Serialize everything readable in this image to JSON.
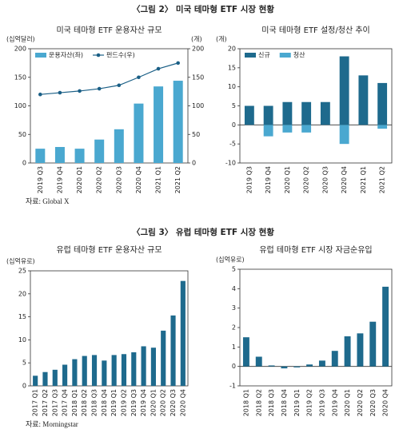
{
  "figures": [
    {
      "title": "〈그림 2〉 미국 테마형 ETF 시장 현황",
      "source": "자료: Global X"
    },
    {
      "title": "〈그림 3〉 유럽 테마형 ETF 시장 현황",
      "source": "자료: Morningstar"
    }
  ],
  "chart_data": [
    {
      "type": "combo",
      "title": "미국 테마형 ETF 운용자산 규모",
      "ylabel": "(십억달러)",
      "y2label": "(개)",
      "categories": [
        "2019 Q3",
        "2019 Q4",
        "2020 Q1",
        "2020 Q2",
        "2020 Q3",
        "2020 Q4",
        "2021 Q1",
        "2021 Q2"
      ],
      "series": [
        {
          "name": "운용자산(좌)",
          "color": "#4aa8d0",
          "kind": "bar",
          "values": [
            25,
            28,
            25,
            41,
            59,
            104,
            134,
            144
          ]
        },
        {
          "name": "펀드수(우)",
          "color": "#1a5f86",
          "kind": "line",
          "axis": "y2",
          "values": [
            120,
            123,
            126,
            130,
            136,
            150,
            165,
            175
          ]
        }
      ],
      "ylim": [
        0,
        200
      ],
      "yticks": [
        0,
        50,
        100,
        150,
        200
      ],
      "y2lim": [
        0,
        200
      ],
      "y2ticks": [
        0,
        50,
        100,
        150,
        200
      ],
      "legend": "top-left"
    },
    {
      "type": "bar",
      "title": "미국 테마형 ETF 설정/청산 추이",
      "ylabel": "(개)",
      "categories": [
        "2019 Q3",
        "2019 Q4",
        "2020 Q1",
        "2020 Q2",
        "2020 Q3",
        "2020 Q4",
        "2021 Q1",
        "2021 Q2"
      ],
      "series": [
        {
          "name": "신규",
          "color": "#1e6a8d",
          "values": [
            5,
            5,
            6,
            6,
            6,
            18,
            13,
            11
          ]
        },
        {
          "name": "청산",
          "color": "#4aa8d0",
          "values": [
            0,
            -3,
            -2,
            -2,
            0,
            -5,
            0,
            -1
          ]
        }
      ],
      "ylim": [
        -10,
        20
      ],
      "yticks": [
        -10,
        -5,
        0,
        5,
        10,
        15,
        20
      ],
      "legend": "top-left"
    },
    {
      "type": "bar",
      "title": "유럽 테마형 ETF 운용자산 규모",
      "ylabel": "(십억유로)",
      "categories": [
        "2017 Q1",
        "2017 Q2",
        "2017 Q3",
        "2017 Q4",
        "2018 Q1",
        "2018 Q2",
        "2018 Q3",
        "2018 Q4",
        "2019 Q1",
        "2019 Q2",
        "2019 Q3",
        "2019 Q4",
        "2020 Q1",
        "2020 Q2",
        "2020 Q3",
        "2020 Q4"
      ],
      "series": [
        {
          "color": "#1e6a8d",
          "values": [
            2.2,
            3,
            3.5,
            4.6,
            5.8,
            6.5,
            6.7,
            5.5,
            6.7,
            6.9,
            7.3,
            8.6,
            8.3,
            12,
            15.3,
            22.8
          ]
        }
      ],
      "ylim": [
        0,
        25
      ],
      "yticks": [
        0,
        5,
        10,
        15,
        20,
        25
      ]
    },
    {
      "type": "bar",
      "title": "유럽 테마형 ETF 시장 자금순유입",
      "ylabel": "(십억유로)",
      "categories": [
        "2018 Q1",
        "2018 Q2",
        "2018 Q3",
        "2018 Q4",
        "2019 Q1",
        "2019 Q2",
        "2019 Q3",
        "2019 Q4",
        "2020 Q1",
        "2020 Q2",
        "2020 Q3",
        "2020 Q4"
      ],
      "series": [
        {
          "color": "#1e6a8d",
          "values": [
            1.5,
            0.5,
            0.05,
            -0.1,
            -0.05,
            0.1,
            0.3,
            0.8,
            1.55,
            1.7,
            2.3,
            4.1
          ]
        }
      ],
      "ylim": [
        -1,
        5
      ],
      "yticks": [
        -1,
        0,
        1,
        2,
        3,
        4,
        5
      ]
    }
  ]
}
